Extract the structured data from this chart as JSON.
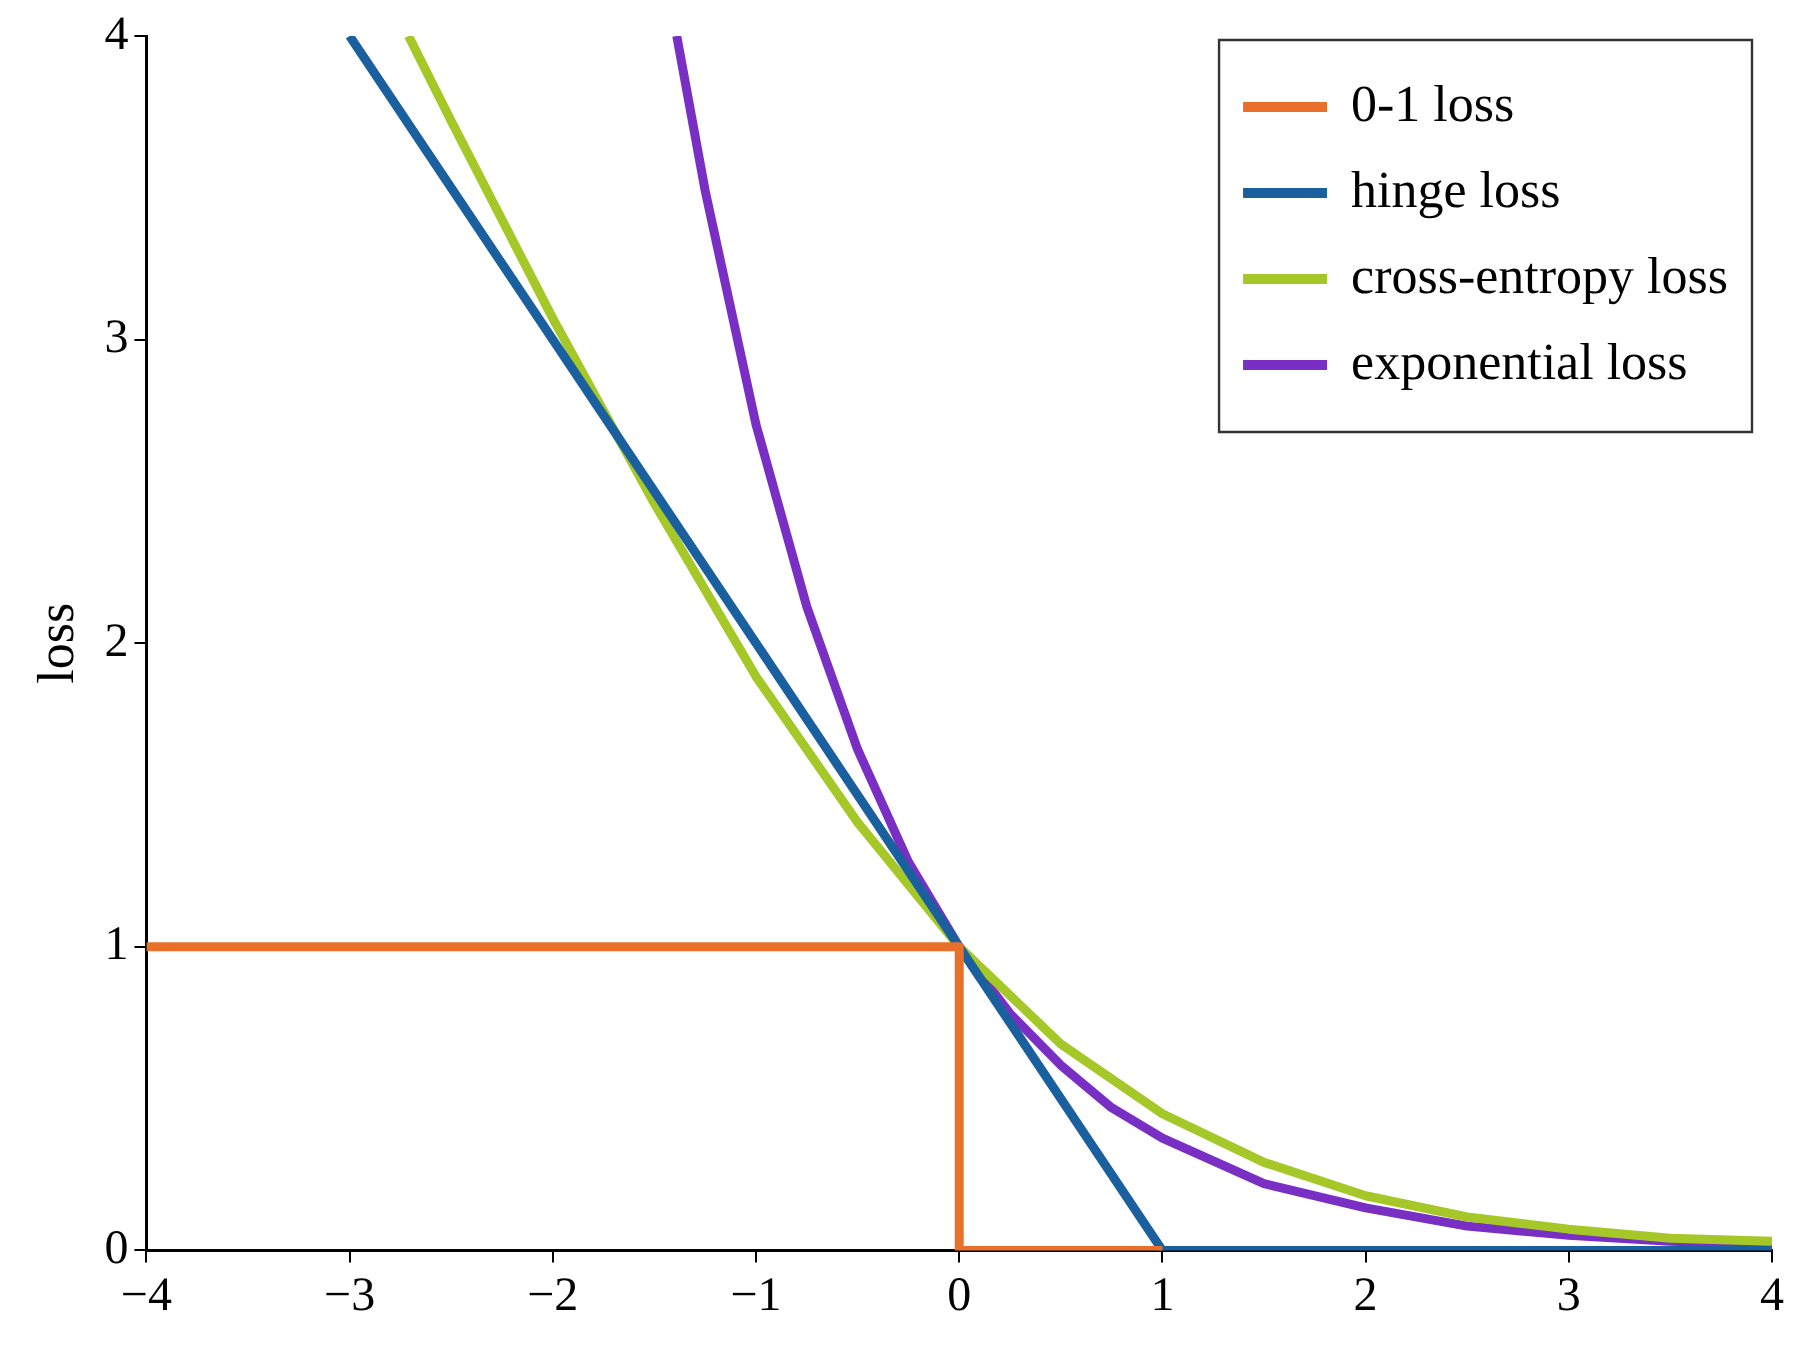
{
  "chart_data": {
    "type": "line",
    "ylabel": "loss",
    "xlim": [
      -4,
      4
    ],
    "ylim": [
      0,
      4
    ],
    "xticks": [
      {
        "value": -4,
        "label": "−4"
      },
      {
        "value": -3,
        "label": "−3"
      },
      {
        "value": -2,
        "label": "−2"
      },
      {
        "value": -1,
        "label": "−1"
      },
      0,
      1,
      2,
      3,
      4
    ],
    "yticks": [
      0,
      1,
      2,
      3,
      4
    ],
    "grid": false,
    "legend": "top right",
    "marker": "none",
    "line_style": "solid",
    "series": [
      {
        "name": "0-1 loss",
        "color": "#e8702a",
        "x": [
          -4,
          0,
          0,
          1
        ],
        "values": [
          1,
          1,
          0,
          0
        ]
      },
      {
        "name": "hinge loss",
        "color": "#1a5f9e",
        "x": [
          -3,
          1,
          4
        ],
        "values": [
          4,
          0,
          0
        ]
      },
      {
        "name": "cross-entropy loss",
        "color": "#a5c828",
        "x": [
          -2.71,
          -2.5,
          -2,
          -1.5,
          -1,
          -0.5,
          0,
          0.5,
          1,
          1.5,
          2,
          2.5,
          3,
          3.5,
          4
        ],
        "values": [
          4,
          3.72,
          3.07,
          2.46,
          1.89,
          1.41,
          1,
          0.68,
          0.45,
          0.29,
          0.18,
          0.11,
          0.07,
          0.04,
          0.03
        ]
      },
      {
        "name": "exponential loss",
        "color": "#7a2fc4",
        "x": [
          -1.39,
          -1.25,
          -1,
          -0.75,
          -0.5,
          -0.25,
          0,
          0.25,
          0.5,
          0.75,
          1,
          1.5,
          2,
          2.5,
          3,
          3.5,
          4
        ],
        "values": [
          4,
          3.49,
          2.72,
          2.12,
          1.65,
          1.28,
          1,
          0.78,
          0.61,
          0.47,
          0.37,
          0.22,
          0.14,
          0.08,
          0.05,
          0.03,
          0.02
        ]
      }
    ]
  }
}
